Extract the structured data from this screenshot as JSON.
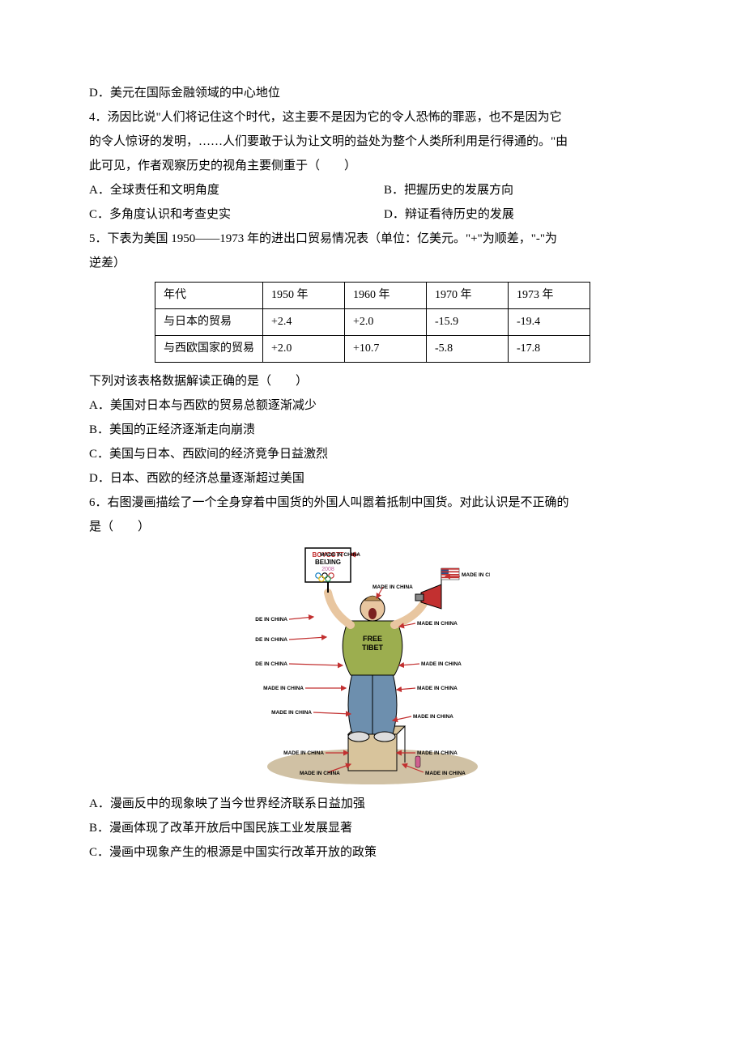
{
  "q3": {
    "optD": "D．美元在国际金融领域的中心地位"
  },
  "q4": {
    "stem1": "4．汤因比说\"人们将记住这个时代，这主要不是因为它的令人恐怖的罪恶，也不是因为它",
    "stem2": "的令人惊讶的发明，……人们要敢于认为让文明的益处为整个人类所利用是行得通的。\"由",
    "stem3": "此可见，作者观察历史的视角主要侧重于（　　）",
    "A": "A．全球责任和文明角度",
    "B": "B．把握历史的发展方向",
    "C": "C．多角度认识和考查史实",
    "D": "D．辩证看待历史的发展"
  },
  "q5": {
    "stem1": "5．下表为美国 1950——1973 年的进出口贸易情况表（单位：亿美元。\"+\"为顺差，\"-\"为",
    "stem2": "逆差）",
    "table": {
      "cols": [
        "年代",
        "1950 年",
        "1960 年",
        "1970 年",
        "1973 年"
      ],
      "rows": [
        [
          "与日本的贸易",
          "+2.4",
          "+2.0",
          "-15.9",
          "-19.4"
        ],
        [
          "与西欧国家的贸易",
          "+2.0",
          "+10.7",
          "-5.8",
          "-17.8"
        ]
      ]
    },
    "prompt": "下列对该表格数据解读正确的是（　　）",
    "A": "A．美国对日本与西欧的贸易总额逐渐减少",
    "B": "B．美国的正经济逐渐走向崩溃",
    "C": "C．美国与日本、西欧间的经济竞争日益激烈",
    "D": "D．日本、西欧的经济总量逐渐超过美国"
  },
  "q6": {
    "stem1": "6．右图漫画描绘了一个全身穿着中国货的外国人叫嚣着抵制中国货。对此认识是不正确的",
    "stem2": "是（　　）",
    "A": "A．漫画反中的现象映了当今世界经济联系日益加强",
    "B": "B．漫画体现了改革开放后中国民族工业发展显著",
    "C": "C．漫画中现象产生的根源是中国实行改革开放的政策"
  },
  "cartoon": {
    "bg": "#ffffff",
    "ground": "#bca77d",
    "box": "#d8c49c",
    "shirt": "#9cae4f",
    "shirt_text": "FREE TIBET",
    "pants": "#6d8fae",
    "skin": "#e8c6a0",
    "flag_red": "#c23030",
    "flag_blue": "#2c4f86",
    "arrow": "#c23030",
    "label_color": "#000000",
    "sign_border": "#000000",
    "sign_text1": "BOYCOTT",
    "sign_text2": "BEIJING",
    "sign_text3": "2008",
    "rings": [
      "#0b79bf",
      "#000000",
      "#c23030",
      "#f4c20d",
      "#1a9850"
    ],
    "labels": [
      "MADE IN CHINA"
    ]
  }
}
